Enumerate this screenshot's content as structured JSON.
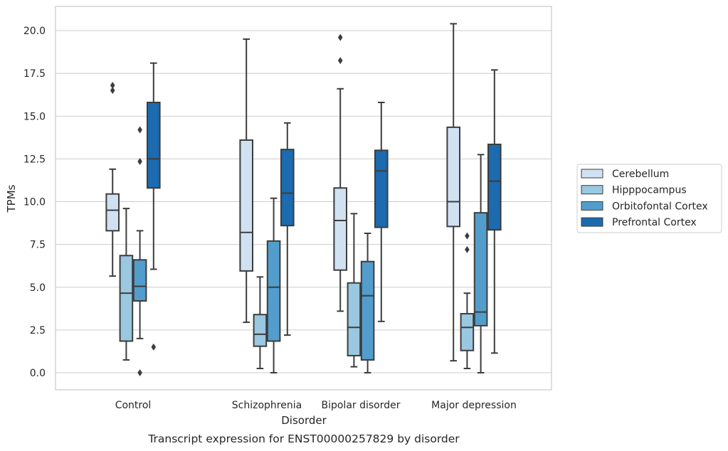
{
  "chart_data": {
    "type": "boxplot",
    "xlabel": "Disorder",
    "ylabel": "TPMs",
    "caption": "Transcript expression for ENST00000257829 by disorder",
    "ylim": [
      -1,
      21.4
    ],
    "yticks": [
      "0.0",
      "2.5",
      "5.0",
      "7.5",
      "10.0",
      "12.5",
      "15.0",
      "17.5",
      "20.0"
    ],
    "ytick_values": [
      0,
      2.5,
      5,
      7.5,
      10,
      12.5,
      15,
      17.5,
      20
    ],
    "grid": "horizontal",
    "legend_position": "right",
    "categories": [
      "Control",
      "Schizophrenia",
      "Bipolar disorder",
      "Major depression"
    ],
    "series": [
      {
        "name": "Cerebellum",
        "color": "#d0e1f2",
        "boxes": [
          {
            "whislo": 5.65,
            "q1": 8.3,
            "med": 9.5,
            "q3": 10.45,
            "whishi": 11.9,
            "fliers": [
              16.8,
              16.5
            ]
          },
          {
            "whislo": 2.95,
            "q1": 5.95,
            "med": 8.2,
            "q3": 13.6,
            "whishi": 19.5,
            "fliers": []
          },
          {
            "whislo": 3.6,
            "q1": 6.0,
            "med": 8.9,
            "q3": 10.8,
            "whishi": 16.6,
            "fliers": [
              19.6,
              18.25
            ]
          },
          {
            "whislo": 0.7,
            "q1": 8.55,
            "med": 10.0,
            "q3": 14.35,
            "whishi": 20.4,
            "fliers": []
          }
        ]
      },
      {
        "name": "Hipppocampus",
        "color": "#9ac8e0",
        "boxes": [
          {
            "whislo": 0.75,
            "q1": 1.85,
            "med": 4.65,
            "q3": 6.85,
            "whishi": 9.6,
            "fliers": []
          },
          {
            "whislo": 0.25,
            "q1": 1.55,
            "med": 2.25,
            "q3": 3.4,
            "whishi": 5.6,
            "fliers": []
          },
          {
            "whislo": 0.35,
            "q1": 1.0,
            "med": 2.65,
            "q3": 5.25,
            "whishi": 9.3,
            "fliers": []
          },
          {
            "whislo": 0.25,
            "q1": 1.3,
            "med": 2.65,
            "q3": 3.45,
            "whishi": 4.65,
            "fliers": [
              8.0,
              7.2
            ]
          }
        ]
      },
      {
        "name": "Orbitofontal Cortex",
        "color": "#529dcc",
        "boxes": [
          {
            "whislo": 2.0,
            "q1": 4.2,
            "med": 5.05,
            "q3": 6.6,
            "whishi": 8.3,
            "fliers": [
              14.2,
              12.35,
              0.0
            ]
          },
          {
            "whislo": 0.0,
            "q1": 1.85,
            "med": 5.0,
            "q3": 7.7,
            "whishi": 10.2,
            "fliers": []
          },
          {
            "whislo": 0.0,
            "q1": 0.75,
            "med": 4.5,
            "q3": 6.5,
            "whishi": 8.15,
            "fliers": []
          },
          {
            "whislo": 0.0,
            "q1": 2.75,
            "med": 3.55,
            "q3": 9.35,
            "whishi": 12.75,
            "fliers": []
          }
        ]
      },
      {
        "name": "Prefrontal Cortex",
        "color": "#1c6aaf",
        "boxes": [
          {
            "whislo": 6.05,
            "q1": 10.8,
            "med": 12.5,
            "q3": 15.8,
            "whishi": 18.1,
            "fliers": [
              1.5
            ]
          },
          {
            "whislo": 2.2,
            "q1": 8.6,
            "med": 10.5,
            "q3": 13.05,
            "whishi": 14.6,
            "fliers": []
          },
          {
            "whislo": 3.0,
            "q1": 8.5,
            "med": 11.8,
            "q3": 13.0,
            "whishi": 15.8,
            "fliers": []
          },
          {
            "whislo": 1.15,
            "q1": 8.35,
            "med": 11.2,
            "q3": 13.35,
            "whishi": 17.7,
            "fliers": []
          }
        ]
      }
    ]
  }
}
